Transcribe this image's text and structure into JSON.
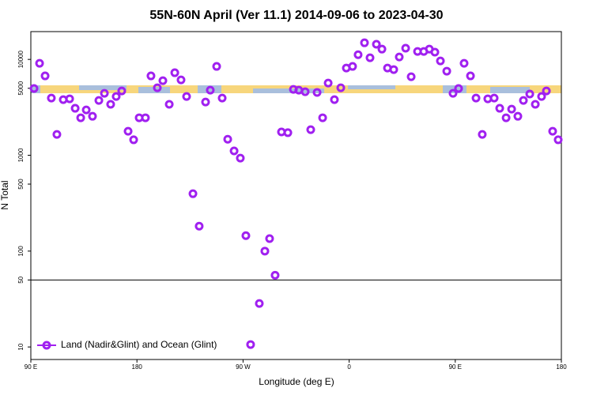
{
  "chart_data": {
    "type": "scatter",
    "title": "55N-60N April (Ver 11.1)   2014-09-06 to 2023-04-30",
    "x_label": "Longitude (deg E)",
    "y_label": "N Total",
    "xlim": [
      90,
      540
    ],
    "ylim": [
      7.4,
      19500
    ],
    "y_scale": "log",
    "xticks": [
      {
        "value": 90,
        "label": "90 E"
      },
      {
        "value": 180,
        "label": "180"
      },
      {
        "value": 270,
        "label": "90 W"
      },
      {
        "value": 360,
        "label": "0"
      },
      {
        "value": 450,
        "label": "90 E"
      },
      {
        "value": 540,
        "label": "180"
      }
    ],
    "yticks": [
      10,
      50,
      100,
      500,
      1000,
      5000,
      10000
    ],
    "hline": 50,
    "legend": "lower left",
    "series": [
      {
        "name": "Land (Nadir&Glint) and Ocean (Glint)",
        "color": "#a020f0",
        "x": [
          92.7,
          97.4,
          102.1,
          107.4,
          112.1,
          117.5,
          122.9,
          127.6,
          132.3,
          137,
          142.3,
          147.7,
          152.4,
          157.7,
          162.4,
          167.1,
          172.5,
          177.2,
          181.9,
          187.2,
          191.9,
          197.3,
          202,
          207.4,
          212.1,
          217.4,
          222.1,
          227.5,
          232.8,
          238.2,
          242.2,
          247.6,
          252.3,
          257,
          262.4,
          267.7,
          272.4,
          276.4,
          283.8,
          288.5,
          292.5,
          297.2,
          302.6,
          308,
          312.7,
          317.3,
          322.7,
          327.4,
          332.8,
          337.5,
          342.2,
          347.5,
          352.9,
          357.6,
          362.9,
          367.6,
          373,
          377.7,
          383.1,
          387.8,
          392.5,
          397.8,
          402.5,
          407.9,
          412.6,
          418,
          423.3,
          428,
          432.7,
          437.4,
          442.8,
          448.1,
          452.8,
          457.5,
          462.9,
          467.6,
          472.9,
          477.6,
          483,
          487.7,
          493.1,
          497.8,
          503.1,
          507.8,
          513.2,
          517.9,
          523.2,
          527.3,
          532.6,
          537.3
        ],
        "values": [
          4970,
          9100,
          6730,
          3950,
          1650,
          3800,
          3880,
          3090,
          2460,
          2970,
          2550,
          3730,
          4430,
          3400,
          4100,
          4690,
          1780,
          1450,
          2460,
          2460,
          6730,
          5060,
          6000,
          3400,
          7260,
          6110,
          4100,
          397,
          182,
          3590,
          4780,
          8450,
          3950,
          1470,
          1110,
          933,
          145,
          10.6,
          28.4,
          100,
          135,
          56,
          1750,
          1720,
          4870,
          4780,
          4600,
          1850,
          4520,
          2460,
          5670,
          3800,
          5060,
          8130,
          8450,
          11200,
          14900,
          10400,
          14400,
          12800,
          8130,
          7830,
          10600,
          13100,
          6600,
          12100,
          12100,
          12800,
          11900,
          9640,
          7540,
          4430,
          4970,
          9100,
          6730,
          3950,
          1650,
          3880,
          3950,
          3090,
          2460,
          3030,
          2550,
          3730,
          4350,
          3400,
          4100,
          4690,
          1780,
          1450
        ]
      }
    ]
  }
}
